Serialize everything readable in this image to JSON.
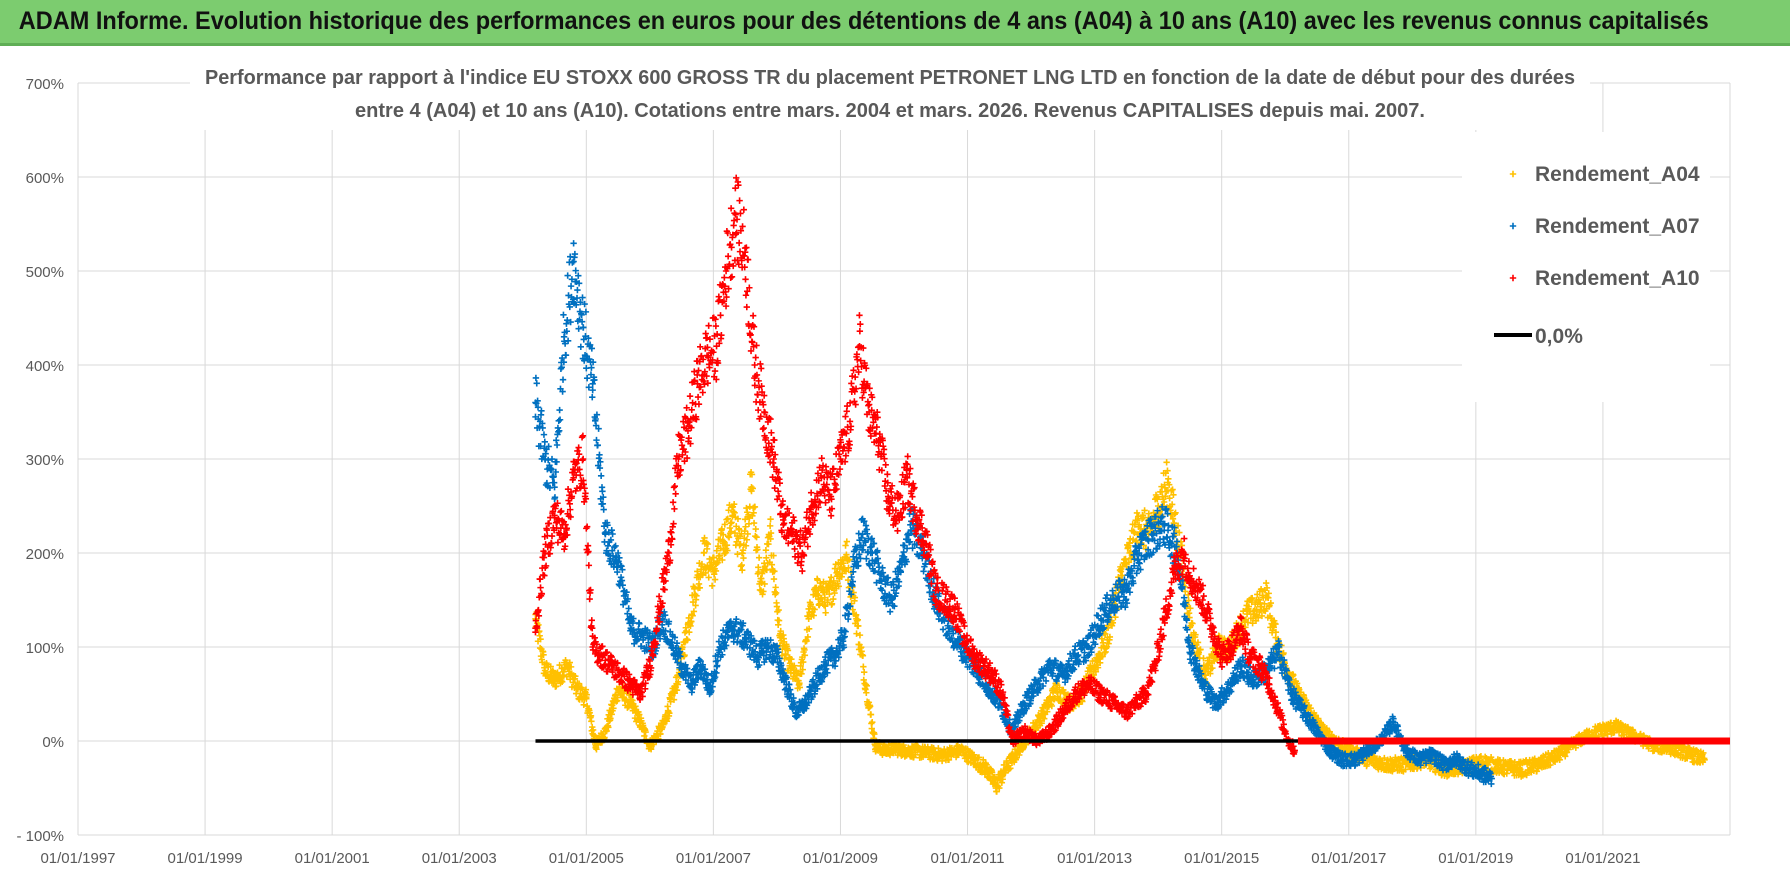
{
  "banner": {
    "title": "ADAM Informe. Evolution historique des performances en euros pour des détentions de 4 ans (A04) à 10 ans (A10) avec les revenus connus capitalisés"
  },
  "colors": {
    "a04": "#ffc000",
    "a07": "#0070c0",
    "a10": "#ff0000",
    "zero": "#000000",
    "banner": "#7ccc6f"
  },
  "chart_data": {
    "type": "scatter",
    "title_line1": "Performance par rapport à l'indice EU STOXX 600 GROSS TR  du placement PETRONET LNG LTD en fonction de la date de début pour des durées",
    "title_line2": "entre 4 (A04) et 10 ans (A10). Cotations entre mars. 2004 et mars. 2026. Revenus CAPITALISES depuis mai. 2007.",
    "xlim": [
      1997.0,
      2023.0
    ],
    "ylim": [
      -100,
      700
    ],
    "x_ticks": [
      {
        "value": 1997,
        "label": "01/01/1997"
      },
      {
        "value": 1999,
        "label": "01/01/1999"
      },
      {
        "value": 2001,
        "label": "01/01/2001"
      },
      {
        "value": 2003,
        "label": "01/01/2003"
      },
      {
        "value": 2005,
        "label": "01/01/2005"
      },
      {
        "value": 2007,
        "label": "01/01/2007"
      },
      {
        "value": 2009,
        "label": "01/01/2009"
      },
      {
        "value": 2011,
        "label": "01/01/2011"
      },
      {
        "value": 2013,
        "label": "01/01/2013"
      },
      {
        "value": 2015,
        "label": "01/01/2015"
      },
      {
        "value": 2017,
        "label": "01/01/2017"
      },
      {
        "value": 2019,
        "label": "01/01/2019"
      },
      {
        "value": 2021,
        "label": "01/01/2021"
      }
    ],
    "y_ticks": [
      {
        "value": 700,
        "label": "700%"
      },
      {
        "value": 600,
        "label": "600%"
      },
      {
        "value": 500,
        "label": "500%"
      },
      {
        "value": 400,
        "label": "400%"
      },
      {
        "value": 300,
        "label": "300%"
      },
      {
        "value": 200,
        "label": "200%"
      },
      {
        "value": 100,
        "label": "100%"
      },
      {
        "value": 0,
        "label": "0%"
      },
      {
        "value": -100,
        "label": "- 100%"
      }
    ],
    "grid": true,
    "legend_position": "top-right",
    "series": [
      {
        "name": "Rendement_A04",
        "key": "a04",
        "x": [
          2004.2,
          2004.35,
          2004.5,
          2004.7,
          2004.85,
          2005.0,
          2005.15,
          2005.3,
          2005.5,
          2005.7,
          2005.85,
          2006.0,
          2006.2,
          2006.4,
          2006.55,
          2006.7,
          2006.85,
          2007.0,
          2007.15,
          2007.3,
          2007.45,
          2007.6,
          2007.75,
          2007.9,
          2008.05,
          2008.2,
          2008.35,
          2008.5,
          2008.65,
          2008.8,
          2008.95,
          2009.1,
          2009.25,
          2009.4,
          2009.55,
          2009.7,
          2009.85,
          2010.0,
          2010.3,
          2010.6,
          2010.9,
          2011.1,
          2011.3,
          2011.45,
          2011.6,
          2011.8,
          2012.0,
          2012.2,
          2012.4,
          2012.6,
          2012.8,
          2013.0,
          2013.2,
          2013.4,
          2013.55,
          2013.7,
          2013.85,
          2014.0,
          2014.15,
          2014.35,
          2014.55,
          2014.75,
          2014.95,
          2015.1,
          2015.25,
          2015.4,
          2015.55,
          2015.7,
          2015.85,
          2016.0,
          2016.2,
          2016.4,
          2016.6,
          2016.8,
          2017.0,
          2017.3,
          2017.6,
          2017.9,
          2018.2,
          2018.5,
          2018.8,
          2019.1,
          2019.4,
          2019.7,
          2020.0,
          2020.3,
          2020.6,
          2020.9,
          2021.2,
          2021.5,
          2021.8,
          2022.1,
          2022.4,
          2022.6
        ],
        "y": [
          130,
          75,
          65,
          80,
          55,
          45,
          -5,
          10,
          55,
          40,
          20,
          -5,
          15,
          55,
          105,
          155,
          200,
          180,
          210,
          240,
          200,
          270,
          160,
          215,
          110,
          80,
          60,
          130,
          160,
          150,
          180,
          195,
          130,
          60,
          -5,
          -10,
          -8,
          -10,
          -12,
          -15,
          -10,
          -20,
          -30,
          -48,
          -30,
          -10,
          10,
          30,
          55,
          40,
          50,
          80,
          110,
          170,
          200,
          230,
          220,
          250,
          275,
          200,
          110,
          70,
          100,
          95,
          115,
          135,
          140,
          155,
          110,
          80,
          50,
          30,
          10,
          0,
          -10,
          -20,
          -25,
          -25,
          -20,
          -30,
          -28,
          -22,
          -28,
          -30,
          -25,
          -15,
          0,
          10,
          15,
          5,
          -5,
          -8,
          -15,
          -20
        ]
      },
      {
        "name": "Rendement_A07",
        "key": "a07",
        "x": [
          2004.2,
          2004.35,
          2004.5,
          2004.65,
          2004.8,
          2004.95,
          2005.1,
          2005.3,
          2005.5,
          2005.7,
          2005.9,
          2006.05,
          2006.2,
          2006.35,
          2006.5,
          2006.65,
          2006.8,
          2006.95,
          2007.1,
          2007.3,
          2007.5,
          2007.7,
          2007.85,
          2008.0,
          2008.15,
          2008.3,
          2008.45,
          2008.6,
          2008.75,
          2008.9,
          2009.05,
          2009.2,
          2009.35,
          2009.5,
          2009.65,
          2009.8,
          2009.95,
          2010.1,
          2010.3,
          2010.5,
          2010.7,
          2010.9,
          2011.1,
          2011.3,
          2011.5,
          2011.7,
          2011.9,
          2012.1,
          2012.3,
          2012.5,
          2012.7,
          2012.9,
          2013.1,
          2013.3,
          2013.5,
          2013.7,
          2013.9,
          2014.1,
          2014.3,
          2014.5,
          2014.7,
          2014.9,
          2015.1,
          2015.3,
          2015.5,
          2015.7,
          2015.9,
          2016.1,
          2016.3,
          2016.5,
          2016.7,
          2016.9,
          2017.1,
          2017.3,
          2017.5,
          2017.7,
          2017.9,
          2018.1,
          2018.3,
          2018.5,
          2018.7,
          2018.9,
          2019.1,
          2019.25
        ],
        "y": [
          360,
          300,
          270,
          430,
          510,
          440,
          380,
          220,
          190,
          120,
          110,
          100,
          130,
          105,
          80,
          60,
          80,
          55,
          100,
          120,
          110,
          90,
          100,
          90,
          60,
          30,
          40,
          60,
          80,
          90,
          110,
          180,
          220,
          200,
          170,
          150,
          180,
          230,
          200,
          150,
          120,
          100,
          80,
          60,
          40,
          10,
          40,
          60,
          80,
          70,
          90,
          100,
          130,
          150,
          160,
          200,
          220,
          230,
          200,
          100,
          60,
          40,
          55,
          80,
          65,
          75,
          95,
          50,
          30,
          10,
          -10,
          -20,
          -20,
          -10,
          0,
          20,
          -10,
          -20,
          -15,
          -25,
          -20,
          -30,
          -35,
          -40
        ]
      },
      {
        "name": "Rendement_A10",
        "key": "a10",
        "x": [
          2004.2,
          2004.35,
          2004.5,
          2004.65,
          2004.8,
          2004.95,
          2005.1,
          2005.25,
          2005.4,
          2005.55,
          2005.7,
          2005.85,
          2006.0,
          2006.15,
          2006.3,
          2006.45,
          2006.6,
          2006.75,
          2006.9,
          2007.05,
          2007.2,
          2007.35,
          2007.5,
          2007.65,
          2007.8,
          2007.95,
          2008.1,
          2008.25,
          2008.4,
          2008.55,
          2008.7,
          2008.85,
          2009.0,
          2009.15,
          2009.3,
          2009.45,
          2009.6,
          2009.75,
          2009.9,
          2010.05,
          2010.2,
          2010.35,
          2010.5,
          2010.65,
          2010.8,
          2010.95,
          2011.1,
          2011.25,
          2011.4,
          2011.55,
          2011.7,
          2011.9,
          2012.1,
          2012.3,
          2012.5,
          2012.7,
          2012.9,
          2013.1,
          2013.3,
          2013.5,
          2013.65,
          2013.8,
          2013.95,
          2014.1,
          2014.25,
          2014.4,
          2014.55,
          2014.7,
          2014.85,
          2015.0,
          2015.15,
          2015.3,
          2015.45,
          2015.6,
          2015.75,
          2015.9,
          2016.05,
          2016.15
        ],
        "y": [
          120,
          200,
          240,
          220,
          280,
          300,
          100,
          90,
          80,
          70,
          60,
          50,
          80,
          140,
          200,
          300,
          330,
          380,
          410,
          420,
          500,
          560,
          520,
          400,
          350,
          300,
          230,
          220,
          200,
          250,
          280,
          260,
          300,
          340,
          420,
          350,
          320,
          260,
          240,
          280,
          240,
          210,
          160,
          150,
          140,
          110,
          90,
          80,
          70,
          50,
          0,
          10,
          0,
          10,
          30,
          50,
          60,
          50,
          40,
          30,
          40,
          50,
          80,
          130,
          180,
          200,
          170,
          150,
          120,
          90,
          100,
          120,
          90,
          80,
          60,
          30,
          0,
          -10
        ]
      }
    ],
    "zero_line": {
      "name": "0,0%",
      "y": 0,
      "x_start": 2004.2,
      "x_end": 2023.0
    },
    "red_zero_segment": {
      "x_start": 2016.2,
      "x_end": 2023.0,
      "y": 0
    }
  }
}
